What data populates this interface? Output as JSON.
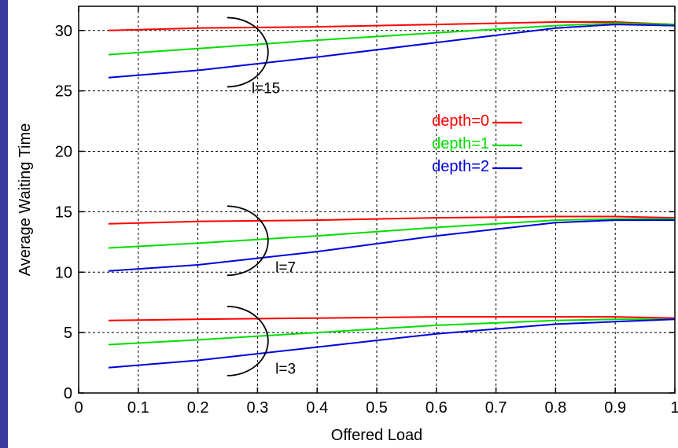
{
  "chart_data": {
    "type": "line",
    "xlabel": "Offered Load",
    "ylabel": "Average Waiting Time",
    "xlim": [
      0,
      1
    ],
    "ylim": [
      0,
      32
    ],
    "xticks": [
      "0",
      "0.1",
      "0.2",
      "0.3",
      "0.4",
      "0.5",
      "0.6",
      "0.7",
      "0.8",
      "0.9",
      "1"
    ],
    "yticks": [
      "0",
      "5",
      "10",
      "15",
      "20",
      "25",
      "30"
    ],
    "grid": true,
    "legend_position": "center-right",
    "legend": [
      {
        "label": "depth=0",
        "color": "#ff0000"
      },
      {
        "label": "depth=1",
        "color": "#00dd00"
      },
      {
        "label": "depth=2",
        "color": "#0000dd"
      }
    ],
    "annotations": [
      {
        "text": "l=15",
        "x": 0.29,
        "y": 24.8
      },
      {
        "text": "l=7",
        "x": 0.33,
        "y": 10.0
      },
      {
        "text": "l=3",
        "x": 0.33,
        "y": 1.6
      }
    ],
    "series": [
      {
        "group": "l=15",
        "legend_ref": "depth=0",
        "color": "#ff0000",
        "x": [
          0.05,
          0.2,
          0.4,
          0.6,
          0.8,
          0.9,
          1.0
        ],
        "y": [
          30.0,
          30.2,
          30.3,
          30.5,
          30.7,
          30.7,
          30.5
        ]
      },
      {
        "group": "l=15",
        "legend_ref": "depth=1",
        "color": "#00dd00",
        "x": [
          0.05,
          0.2,
          0.4,
          0.6,
          0.8,
          0.9,
          1.0
        ],
        "y": [
          28.0,
          28.5,
          29.2,
          29.8,
          30.4,
          30.6,
          30.5
        ]
      },
      {
        "group": "l=15",
        "legend_ref": "depth=2",
        "color": "#0000dd",
        "x": [
          0.05,
          0.2,
          0.4,
          0.6,
          0.8,
          0.9,
          1.0
        ],
        "y": [
          26.1,
          26.7,
          27.8,
          29.0,
          30.2,
          30.5,
          30.4
        ]
      },
      {
        "group": "l=7",
        "legend_ref": "depth=0",
        "color": "#ff0000",
        "x": [
          0.05,
          0.2,
          0.4,
          0.6,
          0.8,
          0.9,
          1.0
        ],
        "y": [
          14.0,
          14.2,
          14.3,
          14.5,
          14.6,
          14.6,
          14.5
        ]
      },
      {
        "group": "l=7",
        "legend_ref": "depth=1",
        "color": "#00dd00",
        "x": [
          0.05,
          0.2,
          0.4,
          0.6,
          0.8,
          0.9,
          1.0
        ],
        "y": [
          12.0,
          12.4,
          13.0,
          13.7,
          14.3,
          14.4,
          14.4
        ]
      },
      {
        "group": "l=7",
        "legend_ref": "depth=2",
        "color": "#0000dd",
        "x": [
          0.05,
          0.2,
          0.4,
          0.6,
          0.8,
          0.9,
          1.0
        ],
        "y": [
          10.1,
          10.6,
          11.7,
          13.0,
          14.1,
          14.3,
          14.3
        ]
      },
      {
        "group": "l=3",
        "legend_ref": "depth=0",
        "color": "#ff0000",
        "x": [
          0.05,
          0.2,
          0.4,
          0.6,
          0.8,
          0.9,
          1.0
        ],
        "y": [
          6.0,
          6.1,
          6.2,
          6.3,
          6.3,
          6.3,
          6.2
        ]
      },
      {
        "group": "l=3",
        "legend_ref": "depth=1",
        "color": "#00dd00",
        "x": [
          0.05,
          0.2,
          0.4,
          0.6,
          0.8,
          0.9,
          1.0
        ],
        "y": [
          4.0,
          4.4,
          5.0,
          5.6,
          6.0,
          6.1,
          6.1
        ]
      },
      {
        "group": "l=3",
        "legend_ref": "depth=2",
        "color": "#0000dd",
        "x": [
          0.05,
          0.2,
          0.4,
          0.6,
          0.8,
          0.9,
          1.0
        ],
        "y": [
          2.1,
          2.7,
          3.8,
          4.9,
          5.7,
          5.9,
          6.1
        ]
      }
    ]
  }
}
